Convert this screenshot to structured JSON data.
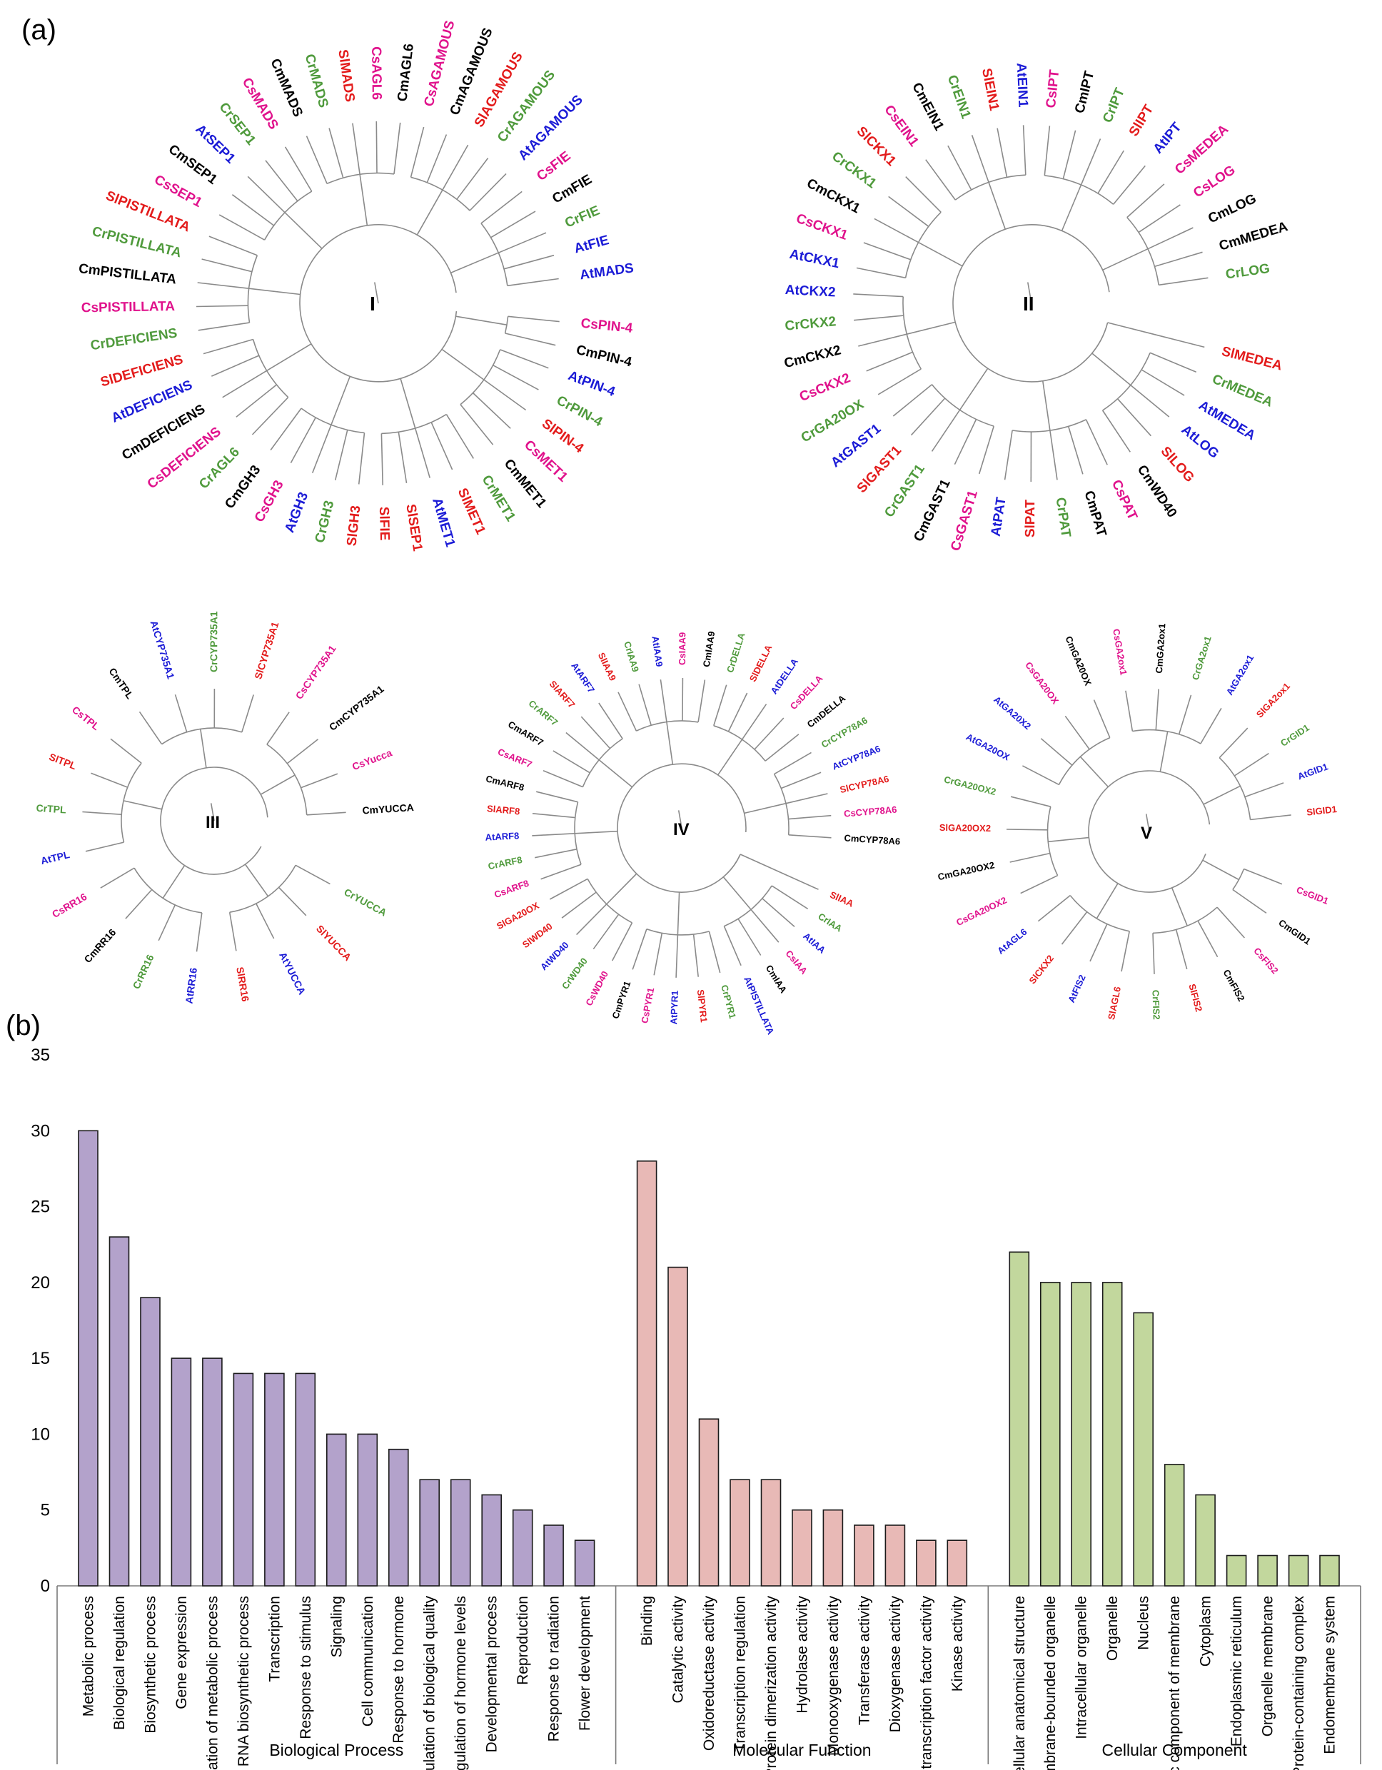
{
  "panels": {
    "a": "(a)",
    "b": "(b)"
  },
  "colors": {
    "At": "#1b1bd6",
    "Cr": "#4f9a3c",
    "Cm": "#000000",
    "Cs": "#e0128c",
    "Sl": "#e31b1b",
    "branch": "#8a8a8a",
    "bp_bar": "#b3a2cb",
    "mf_bar": "#e8b9b6",
    "cc_bar": "#c2d79d"
  },
  "trees": [
    {
      "clade": "I",
      "leaves": [
        "AtMADS",
        "AtFIE",
        "CrFIE",
        "CmFIE",
        "CsFIE",
        "AtAGAMOUS",
        "CrAGAMOUS",
        "SlAGAMOUS",
        "CmAGAMOUS",
        "CsAGAMOUS",
        "CmAGL6",
        "CsAGL6",
        "SlMADS",
        "CrMADS",
        "CmMADS",
        "CsMADS",
        "CrSEP1",
        "AtSEP1",
        "CmSEP1",
        "CsSEP1",
        "SlPISTILLATA",
        "CrPISTILLATA",
        "CmPISTILLATA",
        "CsPISTILLATA",
        "CrDEFICIENS",
        "SlDEFICIENS",
        "AtDEFICIENS",
        "CmDEFICIENS",
        "CsDEFICIENS",
        "CrAGL6",
        "CmGH3",
        "CsGH3",
        "AtGH3",
        "CrGH3",
        "SlGH3",
        "SlFIE",
        "SlSEP1",
        "AtMET1",
        "SlMET1",
        "CrMET1",
        "CmMET1",
        "CsMET1",
        "SlPIN-4",
        "CrPIN-4",
        "AtPIN-4",
        "CmPIN-4",
        "CsPIN-4"
      ]
    },
    {
      "clade": "II",
      "leaves": [
        "CrLOG",
        "CmMEDEA",
        "CmLOG",
        "CsLOG",
        "CsMEDEA",
        "AtIPT",
        "SlIPT",
        "CrIPT",
        "CmIPT",
        "CsIPT",
        "AtEIN1",
        "SlEIN1",
        "CrEIN1",
        "CmEIN1",
        "CsEIN1",
        "SlCKX1",
        "CrCKX1",
        "CmCKX1",
        "CsCKX1",
        "AtCKX1",
        "AtCKX2",
        "CrCKX2",
        "CmCKX2",
        "CsCKX2",
        "CrGA20OX",
        "AtGAST1",
        "SlGAST1",
        "CrGAST1",
        "CmGAST1",
        "CsGAST1",
        "AtPAT",
        "SlPAT",
        "CrPAT",
        "CmPAT",
        "CsPAT",
        "CmWD40",
        "SlLOG",
        "AtLOG",
        "AtMEDEA",
        "CrMEDEA",
        "SlMEDEA"
      ]
    },
    {
      "clade": "III",
      "leaves": [
        "CmYUCCA",
        "CsYucca",
        "CmCYP735A1",
        "CsCYP735A1",
        "SlCYP735A1",
        "CrCYP735A1",
        "AtCYP735A1",
        "CmTPL",
        "CsTPL",
        "SlTPL",
        "CrTPL",
        "AtTPL",
        "CsRR16",
        "CmRR16",
        "CrRR16",
        "AtRR16",
        "SlRR16",
        "AtYUCCA",
        "SlYUCCA",
        "CrYUCCA"
      ]
    },
    {
      "clade": "IV",
      "leaves": [
        "CmCYP78A6",
        "CsCYP78A6",
        "SlCYP78A6",
        "AtCYP78A6",
        "CrCYP78A6",
        "CmDELLA",
        "CsDELLA",
        "AtDELLA",
        "SlDELLA",
        "CrDELLA",
        "CmIAA9",
        "CsIAA9",
        "AtIAA9",
        "CrIAA9",
        "SlIAA9",
        "AtARF7",
        "SlARF7",
        "CrARF7",
        "CmARF7",
        "CsARF7",
        "CmARF8",
        "SlARF8",
        "AtARF8",
        "CrARF8",
        "CsARF8",
        "SlGA20OX",
        "SlWD40",
        "AtWD40",
        "CrWD40",
        "CsWD40",
        "CmPYR1",
        "CsPYR1",
        "AtPYR1",
        "SlPYR1",
        "CrPYR1",
        "AtPISTILLATA",
        "CmIAA",
        "CsIAA",
        "AtIAA",
        "CrIAA",
        "SlIAA"
      ]
    },
    {
      "clade": "V",
      "leaves": [
        "SlGID1",
        "AtGID1",
        "CrGID1",
        "SlGA2ox1",
        "AtGA2ox1",
        "CrGA2ox1",
        "CmGA2ox1",
        "CsGA2ox1",
        "CmGA20OX",
        "CsGA20OX",
        "AtGA20X2",
        "AtGA20OX",
        "CrGA20OX2",
        "SlGA20OX2",
        "CmGA20OX2",
        "CsGA20OX2",
        "AtAGL6",
        "SlCKX2",
        "AtFIS2",
        "SlAGL6",
        "CrFIS2",
        "SlFIS2",
        "CmFIS2",
        "CsFIS2",
        "CmGID1",
        "CsGID1"
      ]
    }
  ],
  "chart_data": {
    "type": "bar",
    "yticks": [
      "0",
      "5",
      "10",
      "15",
      "20",
      "25",
      "30",
      "35"
    ],
    "ylim": [
      0,
      35
    ],
    "groups": [
      {
        "name": "Biological Process",
        "color": "#b3a2cb",
        "categories": [
          "Metabolic process",
          "Biological regulation",
          "Biosynthetic process",
          "Gene expression",
          "Regulation of metabolic process",
          "RNA biosynthetic process",
          "Transcription",
          "Response to stimulus",
          "Signaling",
          "Cell communication",
          "Response to hormone",
          "Regulation of biological quality",
          "Regulation of hormone levels",
          "Developmental process",
          "Reproduction",
          "Response to radiation",
          "Flower development"
        ],
        "values": [
          30,
          23,
          19,
          15,
          15,
          14,
          14,
          14,
          10,
          10,
          9,
          7,
          7,
          6,
          5,
          4,
          3
        ]
      },
      {
        "name": "Molecular Function",
        "color": "#e8b9b6",
        "categories": [
          "Binding",
          "Catalytic activity",
          "Oxidoreductase activity",
          "Transcription regulation",
          "Protein dimerization activity",
          "Hydrolase activity",
          "Monooxygenase activity",
          "Transferase activity",
          "Dioxygenase activity",
          "DNA-binding transcription factor activity",
          "Kinase activity"
        ],
        "values": [
          28,
          21,
          11,
          7,
          7,
          5,
          5,
          4,
          4,
          3,
          3
        ]
      },
      {
        "name": "Cellular Component",
        "color": "#c2d79d",
        "categories": [
          "Intracellular anatomical structure",
          "Membrane-bounded organelle",
          "Intracellular organelle",
          "Organelle",
          "Nucleus",
          "Intrinsic component of membrane",
          "Cytoplasm",
          "Endoplasmic reticulum",
          "Organelle membrane",
          "Protein-containing complex",
          "Endomembrane system"
        ],
        "values": [
          22,
          20,
          20,
          20,
          18,
          8,
          6,
          2,
          2,
          2,
          2
        ]
      }
    ]
  }
}
